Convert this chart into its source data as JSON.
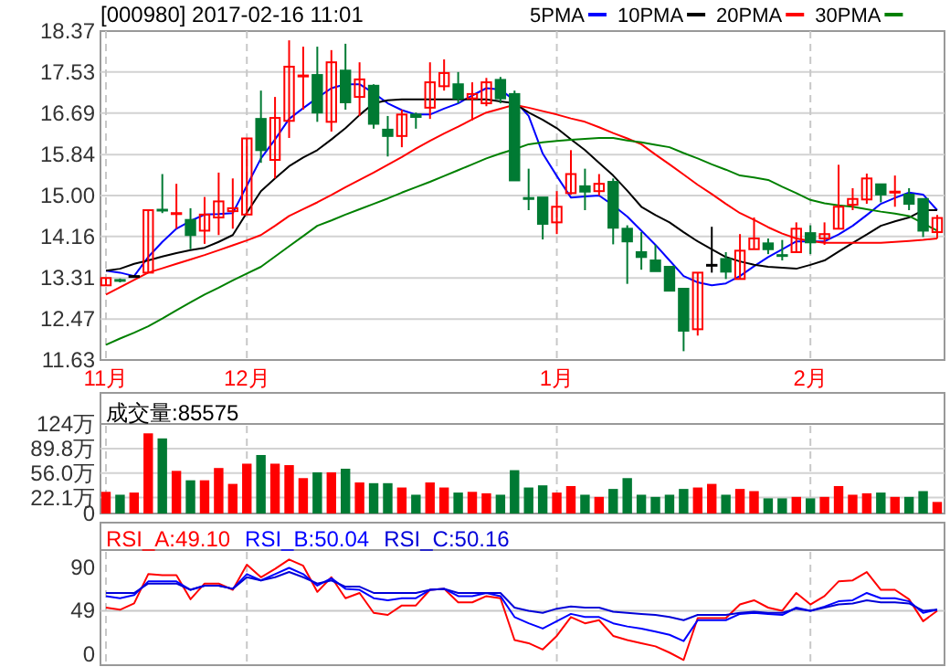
{
  "chart_data": [
    {
      "type": "candlestick",
      "title": "[000980] 2017-02-16 11:01",
      "categories": [
        "11月",
        null,
        null,
        null,
        null,
        null,
        null,
        null,
        null,
        null,
        "12月",
        null,
        null,
        null,
        null,
        null,
        null,
        null,
        null,
        null,
        null,
        null,
        null,
        null,
        null,
        null,
        null,
        null,
        null,
        null,
        null,
        null,
        "1月",
        null,
        null,
        null,
        null,
        null,
        null,
        null,
        null,
        null,
        null,
        null,
        null,
        null,
        null,
        null,
        null,
        null,
        "2月",
        null,
        null,
        null,
        null,
        null,
        null,
        null,
        null,
        null
      ],
      "ohlc": [
        [
          13.16,
          13.31,
          13.16,
          13.31
        ],
        [
          13.27,
          13.3,
          13.22,
          13.26
        ],
        [
          13.35,
          13.37,
          13.33,
          13.35
        ],
        [
          13.42,
          14.7,
          13.42,
          14.7
        ],
        [
          14.71,
          15.44,
          14.64,
          14.7
        ],
        [
          14.62,
          15.24,
          14.32,
          14.64
        ],
        [
          14.5,
          14.74,
          13.9,
          14.19
        ],
        [
          14.28,
          14.97,
          14.01,
          14.61
        ],
        [
          14.55,
          15.47,
          14.19,
          14.88
        ],
        [
          14.68,
          15.35,
          14.32,
          14.74
        ],
        [
          14.61,
          16.17,
          14.61,
          16.17
        ],
        [
          16.57,
          17.15,
          15.67,
          15.93
        ],
        [
          15.73,
          17.02,
          15.35,
          16.59
        ],
        [
          16.53,
          18.18,
          16.18,
          17.64
        ],
        [
          17.44,
          18.05,
          16.76,
          17.46
        ],
        [
          17.47,
          18.05,
          16.51,
          16.7
        ],
        [
          16.51,
          17.98,
          16.31,
          17.73
        ],
        [
          17.56,
          18.11,
          16.76,
          16.91
        ],
        [
          17.02,
          17.73,
          16.63,
          17.38
        ],
        [
          17.25,
          17.28,
          16.37,
          16.47
        ],
        [
          16.35,
          16.63,
          15.8,
          16.22
        ],
        [
          16.22,
          16.76,
          15.99,
          16.66
        ],
        [
          16.66,
          16.7,
          16.37,
          16.61
        ],
        [
          16.8,
          17.73,
          16.57,
          17.32
        ],
        [
          17.24,
          17.79,
          17.15,
          17.51
        ],
        [
          17.28,
          17.53,
          16.89,
          16.99
        ],
        [
          16.99,
          17.32,
          16.54,
          17.08
        ],
        [
          16.89,
          17.41,
          16.83,
          17.32
        ],
        [
          17.37,
          17.43,
          16.89,
          16.99
        ],
        [
          17.08,
          17.15,
          15.31,
          15.31
        ],
        [
          14.95,
          15.55,
          14.7,
          14.93
        ],
        [
          14.96,
          14.96,
          14.1,
          14.42
        ],
        [
          14.45,
          15.09,
          14.21,
          14.77
        ],
        [
          15.05,
          15.93,
          15.02,
          15.44
        ],
        [
          15.19,
          15.55,
          14.7,
          15.08
        ],
        [
          15.09,
          15.44,
          15.0,
          15.24
        ],
        [
          15.28,
          15.35,
          14.0,
          14.34
        ],
        [
          14.32,
          14.39,
          13.19,
          14.06
        ],
        [
          13.84,
          14.25,
          13.48,
          13.74
        ],
        [
          13.67,
          13.99,
          13.45,
          13.45
        ],
        [
          13.54,
          13.54,
          13.05,
          13.05
        ],
        [
          13.09,
          13.09,
          11.81,
          12.23
        ],
        [
          12.26,
          13.42,
          12.13,
          13.42
        ],
        [
          13.58,
          14.36,
          13.42,
          13.58
        ],
        [
          13.7,
          13.84,
          13.29,
          13.44
        ],
        [
          13.29,
          14.21,
          13.29,
          13.87
        ],
        [
          13.9,
          14.55,
          13.9,
          14.12
        ],
        [
          14.02,
          14.12,
          13.8,
          13.9
        ],
        [
          13.78,
          14.09,
          13.67,
          13.77
        ],
        [
          13.84,
          14.45,
          13.84,
          14.32
        ],
        [
          14.23,
          14.39,
          13.8,
          14.04
        ],
        [
          14.12,
          14.45,
          13.99,
          14.21
        ],
        [
          14.32,
          15.63,
          14.32,
          14.77
        ],
        [
          14.81,
          15.15,
          14.7,
          14.93
        ],
        [
          14.92,
          15.45,
          14.83,
          15.35
        ],
        [
          15.23,
          15.23,
          14.86,
          15.02
        ],
        [
          15.06,
          15.41,
          14.77,
          15.08
        ],
        [
          15.02,
          15.15,
          14.7,
          14.83
        ],
        [
          14.93,
          14.93,
          14.15,
          14.28
        ],
        [
          14.25,
          14.6,
          14.12,
          14.54
        ]
      ],
      "series": [
        {
          "name": "5PMA",
          "type": "line",
          "color": "#0000ff",
          "values": [
            13.46,
            13.42,
            13.35,
            13.74,
            14.05,
            14.32,
            14.48,
            14.61,
            14.62,
            14.64,
            15.2,
            15.76,
            16.15,
            16.57,
            16.79,
            17.0,
            17.2,
            17.28,
            17.28,
            17.1,
            16.89,
            16.75,
            16.66,
            16.66,
            16.78,
            16.89,
            17.05,
            17.2,
            17.17,
            16.95,
            16.63,
            15.86,
            15.4,
            14.96,
            14.98,
            15.0,
            14.8,
            14.57,
            14.28,
            13.99,
            13.67,
            13.35,
            13.22,
            13.16,
            13.2,
            13.35,
            13.55,
            13.74,
            13.9,
            14.06,
            14.06,
            14.06,
            14.2,
            14.38,
            14.6,
            14.83,
            14.95,
            15.06,
            15.02,
            14.7
          ]
        },
        {
          "name": "10PMA",
          "type": "line",
          "color": "#000000",
          "values": [
            13.46,
            13.5,
            13.6,
            13.67,
            13.75,
            13.82,
            13.88,
            13.93,
            14.05,
            14.19,
            14.65,
            15.09,
            15.35,
            15.6,
            15.78,
            15.93,
            16.15,
            16.38,
            16.65,
            16.89,
            16.95,
            16.97,
            16.97,
            16.97,
            16.97,
            16.97,
            16.97,
            16.97,
            16.93,
            16.89,
            16.7,
            16.55,
            16.38,
            16.15,
            15.93,
            15.67,
            15.41,
            15.1,
            14.77,
            14.6,
            14.45,
            14.25,
            14.06,
            13.9,
            13.74,
            13.65,
            13.58,
            13.54,
            13.52,
            13.5,
            13.58,
            13.67,
            13.85,
            14.03,
            14.2,
            14.38,
            14.47,
            14.55,
            14.7,
            14.7
          ]
        },
        {
          "name": "20PMA",
          "type": "line",
          "color": "#ff0000",
          "values": [
            12.97,
            13.12,
            13.27,
            13.42,
            13.51,
            13.6,
            13.69,
            13.78,
            13.88,
            13.98,
            14.08,
            14.19,
            14.38,
            14.58,
            14.72,
            14.86,
            15.01,
            15.17,
            15.32,
            15.47,
            15.63,
            15.79,
            15.96,
            16.12,
            16.27,
            16.41,
            16.56,
            16.7,
            16.78,
            16.86,
            16.8,
            16.73,
            16.66,
            16.58,
            16.51,
            16.4,
            16.28,
            16.17,
            16.05,
            15.84,
            15.64,
            15.43,
            15.22,
            15.03,
            14.83,
            14.64,
            14.5,
            14.35,
            14.22,
            14.12,
            14.07,
            14.03,
            14.03,
            14.03,
            14.03,
            14.03,
            14.05,
            14.07,
            14.09,
            14.12
          ]
        },
        {
          "name": "30PMA",
          "type": "line",
          "color": "#008000",
          "values": [
            11.94,
            12.07,
            12.19,
            12.32,
            12.48,
            12.65,
            12.81,
            12.97,
            13.11,
            13.26,
            13.4,
            13.54,
            13.75,
            13.96,
            14.17,
            14.38,
            14.49,
            14.61,
            14.72,
            14.83,
            14.94,
            15.06,
            15.17,
            15.28,
            15.4,
            15.52,
            15.64,
            15.76,
            15.86,
            15.95,
            16.05,
            16.09,
            16.12,
            16.14,
            16.16,
            16.18,
            16.18,
            16.13,
            16.09,
            16.04,
            15.99,
            15.87,
            15.76,
            15.64,
            15.53,
            15.41,
            15.37,
            15.32,
            15.18,
            15.05,
            14.91,
            14.84,
            14.8,
            14.77,
            14.72,
            14.67,
            14.63,
            14.58,
            14.43,
            14.28
          ]
        }
      ],
      "ylim": [
        11.63,
        18.37
      ],
      "yticks": [
        11.63,
        12.47,
        13.31,
        14.16,
        {
          "value": 15,
          "label": "15.00"
        },
        15.84,
        16.69,
        17.53,
        18.37
      ],
      "grid": true,
      "legend": "top"
    },
    {
      "type": "bar",
      "title": "成交量:85575",
      "categories": [
        null,
        null,
        null,
        null,
        null,
        null,
        null,
        null,
        null,
        null,
        null,
        null,
        null,
        null,
        null,
        null,
        null,
        null,
        null,
        null,
        null,
        null,
        null,
        null,
        null,
        null,
        null,
        null,
        null,
        null,
        null,
        null,
        null,
        null,
        null,
        null,
        null,
        null,
        null,
        null,
        null,
        null,
        null,
        null,
        null,
        null,
        null,
        null,
        null,
        null,
        null,
        null,
        null,
        null,
        null,
        null,
        null,
        null,
        null,
        null
      ],
      "values": [
        30,
        26,
        29,
        111,
        104,
        59,
        46,
        46,
        63,
        41,
        69,
        81,
        69,
        67,
        49,
        57,
        57,
        62,
        43,
        42,
        42,
        36,
        26,
        43,
        36,
        29,
        30,
        28,
        26,
        60,
        36,
        39,
        29,
        38,
        26,
        23,
        34,
        49,
        26,
        23,
        26,
        34,
        36,
        41,
        26,
        34,
        31,
        21,
        21,
        23,
        21,
        23,
        38,
        26,
        28,
        29,
        23,
        23,
        31,
        16
      ],
      "colors": [
        "#ff0000",
        "#007a33",
        "#ff0000",
        "#ff0000",
        "#007a33",
        "#ff0000",
        "#007a33",
        "#ff0000",
        "#ff0000",
        "#ff0000",
        "#ff0000",
        "#007a33",
        "#ff0000",
        "#ff0000",
        "#ff0000",
        "#007a33",
        "#ff0000",
        "#007a33",
        "#ff0000",
        "#007a33",
        "#007a33",
        "#ff0000",
        "#007a33",
        "#ff0000",
        "#ff0000",
        "#007a33",
        "#ff0000",
        "#ff0000",
        "#007a33",
        "#007a33",
        "#007a33",
        "#007a33",
        "#ff0000",
        "#ff0000",
        "#007a33",
        "#ff0000",
        "#007a33",
        "#007a33",
        "#007a33",
        "#007a33",
        "#007a33",
        "#007a33",
        "#ff0000",
        "#ff0000",
        "#007a33",
        "#ff0000",
        "#ff0000",
        "#007a33",
        "#007a33",
        "#ff0000",
        "#007a33",
        "#ff0000",
        "#ff0000",
        "#ff0000",
        "#ff0000",
        "#007a33",
        "#ff0000",
        "#007a33",
        "#007a33",
        "#ff0000"
      ],
      "ylim": [
        0,
        124
      ],
      "yticks": [
        0,
        {
          "value": 22.1,
          "label": "22.1万"
        },
        {
          "value": 56,
          "label": "56.0万"
        },
        {
          "value": 89.8,
          "label": "89.8万"
        },
        {
          "value": 124,
          "label": "124万"
        }
      ],
      "grid": true,
      "tick_labels": "y"
    },
    {
      "type": "line",
      "categories": [
        null,
        null,
        null,
        null,
        null,
        null,
        null,
        null,
        null,
        null,
        null,
        null,
        null,
        null,
        null,
        null,
        null,
        null,
        null,
        null,
        null,
        null,
        null,
        null,
        null,
        null,
        null,
        null,
        null,
        null,
        null,
        null,
        null,
        null,
        null,
        null,
        null,
        null,
        null,
        null,
        null,
        null,
        null,
        null,
        null,
        null,
        null,
        null,
        null,
        null,
        null,
        null,
        null,
        null,
        null,
        null,
        null,
        null,
        null,
        null
      ],
      "series": [
        {
          "name": "RSI_A:49.10",
          "color": "#ff0000",
          "values": [
            52,
            50,
            56,
            84,
            83,
            83,
            60,
            75,
            75,
            69,
            93,
            81,
            89,
            98,
            92,
            67,
            81,
            61,
            66,
            47,
            45,
            54,
            54,
            69,
            70,
            57,
            57,
            63,
            61,
            21,
            18,
            12,
            25,
            43,
            37,
            40,
            25,
            21,
            18,
            15,
            9,
            2,
            42,
            42,
            42,
            55,
            59,
            52,
            49,
            66,
            55,
            63,
            77,
            78,
            86,
            69,
            69,
            60,
            39,
            49
          ]
        },
        {
          "name": "RSI_B:50.04",
          "color": "#0000ff",
          "values": [
            63,
            61,
            64,
            77,
            77,
            77,
            69,
            73,
            73,
            70,
            84,
            78,
            84,
            90,
            84,
            73,
            80,
            70,
            69,
            61,
            59,
            61,
            61,
            69,
            70,
            63,
            63,
            66,
            63,
            43,
            37,
            32,
            39,
            46,
            43,
            43,
            37,
            34,
            32,
            29,
            26,
            20,
            40,
            40,
            40,
            46,
            47,
            46,
            45,
            52,
            49,
            53,
            58,
            59,
            66,
            61,
            61,
            58,
            47,
            50
          ]
        },
        {
          "name": "RSI_C:50.16",
          "color": "#0000d8",
          "values": [
            66,
            66,
            66,
            75,
            75,
            75,
            69,
            73,
            73,
            70,
            81,
            78,
            81,
            86,
            81,
            75,
            78,
            72,
            72,
            66,
            66,
            66,
            66,
            69,
            70,
            66,
            66,
            66,
            66,
            52,
            49,
            47,
            51,
            53,
            52,
            52,
            48,
            47,
            46,
            45,
            43,
            40,
            45,
            45,
            45,
            47,
            48,
            47,
            47,
            51,
            49,
            52,
            55,
            56,
            59,
            57,
            57,
            56,
            49,
            50
          ]
        }
      ],
      "ylim": [
        -3,
        107
      ],
      "yticks": [
        0,
        49,
        90
      ],
      "ref_lines": [
        {
          "axis": "y",
          "value": 49,
          "color": "#c8c8c8"
        }
      ],
      "grid": "x",
      "legend": "top",
      "tick_labels": "y"
    }
  ]
}
